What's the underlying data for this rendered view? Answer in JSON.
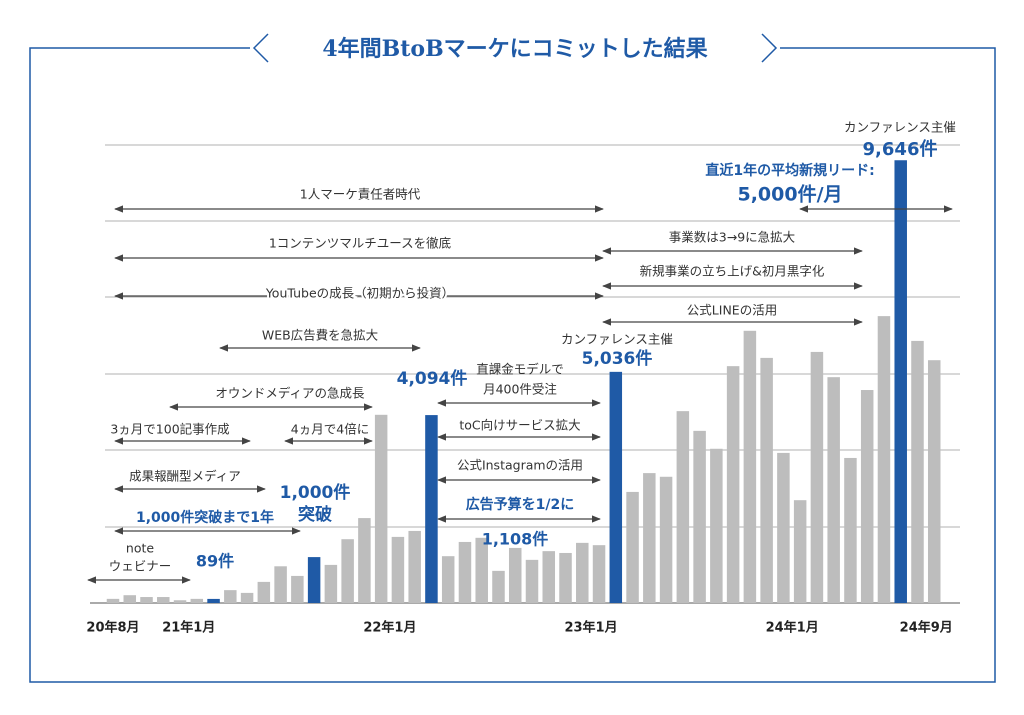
{
  "chart_data": {
    "type": "bar",
    "title": "4年間BtoBマーケにコミットした結果",
    "categories": [
      "20年8月",
      null,
      null,
      null,
      null,
      "21年1月",
      null,
      null,
      null,
      null,
      null,
      null,
      null,
      null,
      null,
      null,
      null,
      "22年1月",
      null,
      null,
      null,
      null,
      null,
      null,
      null,
      null,
      null,
      null,
      null,
      "23年1月",
      null,
      null,
      null,
      null,
      null,
      null,
      null,
      null,
      null,
      null,
      null,
      "24年1月",
      null,
      null,
      null,
      null,
      null,
      null,
      null,
      "24年9月"
    ],
    "values": [
      90,
      170,
      130,
      130,
      60,
      90,
      89,
      280,
      220,
      460,
      800,
      590,
      1000,
      830,
      1390,
      1850,
      4100,
      1440,
      1570,
      4094,
      1020,
      1330,
      1420,
      700,
      1200,
      940,
      1130,
      1090,
      1310,
      1260,
      5036,
      2420,
      2830,
      2750,
      4180,
      3750,
      3360,
      5160,
      5930,
      5340,
      3270,
      2240,
      5470,
      4920,
      3160,
      4640,
      6250,
      9646,
      5710,
      5290
    ],
    "value_labels": [
      null,
      null,
      null,
      null,
      null,
      null,
      "89件",
      null,
      null,
      null,
      null,
      null,
      "1,000件",
      null,
      null,
      null,
      null,
      null,
      null,
      "4,094件",
      null,
      null,
      null,
      null,
      null,
      null,
      null,
      null,
      null,
      null,
      "5,036件",
      null,
      null,
      null,
      null,
      null,
      null,
      null,
      null,
      null,
      null,
      null,
      null,
      null,
      null,
      null,
      null,
      "9,646件",
      null,
      null
    ],
    "colors": [
      "#bdbdbd",
      "#bdbdbd",
      "#bdbdbd",
      "#bdbdbd",
      "#bdbdbd",
      "#bdbdbd",
      "#1f5aa6",
      "#bdbdbd",
      "#bdbdbd",
      "#bdbdbd",
      "#bdbdbd",
      "#bdbdbd",
      "#1f5aa6",
      "#bdbdbd",
      "#bdbdbd",
      "#bdbdbd",
      "#bdbdbd",
      "#bdbdbd",
      "#bdbdbd",
      "#1f5aa6",
      "#bdbdbd",
      "#bdbdbd",
      "#bdbdbd",
      "#bdbdbd",
      "#bdbdbd",
      "#bdbdbd",
      "#bdbdbd",
      "#bdbdbd",
      "#bdbdbd",
      "#bdbdbd",
      "#1f5aa6",
      "#bdbdbd",
      "#bdbdbd",
      "#bdbdbd",
      "#bdbdbd",
      "#bdbdbd",
      "#bdbdbd",
      "#bdbdbd",
      "#bdbdbd",
      "#bdbdbd",
      "#bdbdbd",
      "#bdbdbd",
      "#bdbdbd",
      "#bdbdbd",
      "#bdbdbd",
      "#bdbdbd",
      "#bdbdbd",
      "#1f5aa6",
      "#bdbdbd",
      "#bdbdbd"
    ],
    "ylim": [
      0,
      10000
    ],
    "annotations": [
      {
        "text": [
          "1人マーケ責任者時代"
        ]
      },
      {
        "text": [
          "1コンテンツマルチユースを徹底"
        ]
      },
      {
        "text": [
          "YouTubeの成長（初期から投資）"
        ]
      },
      {
        "text": [
          "WEB広告費を急拡大"
        ]
      },
      {
        "text": [
          "オウンドメディアの急成長"
        ]
      },
      {
        "text": [
          "3ヵ月で100記事作成"
        ]
      },
      {
        "text": [
          "4ヵ月で4倍に"
        ]
      },
      {
        "text": [
          "成果報酬型メディア"
        ]
      },
      {
        "text": [
          "1,000件突破まで1年"
        ]
      },
      {
        "text": [
          "note",
          "ウェビナー"
        ]
      },
      {
        "text": [
          "直課金モデルで",
          "月400件受注"
        ]
      },
      {
        "text": [
          "toC向けサービス拡大"
        ]
      },
      {
        "text": [
          "公式Instagramの活用"
        ]
      },
      {
        "text": [
          "広告予算を1/2に"
        ]
      },
      {
        "text": [
          "事業数は3→9に急拡大"
        ]
      },
      {
        "text": [
          "新規事業の立ち上げ&初月黒字化"
        ]
      },
      {
        "text": [
          "公式LINEの活用"
        ]
      },
      {
        "text": [
          "直近1年の平均新規リード:",
          "5,000件/月"
        ]
      }
    ],
    "notes": [
      "突破",
      "1,108件",
      "カンファレンス主催",
      "カンファレンス主催"
    ]
  }
}
